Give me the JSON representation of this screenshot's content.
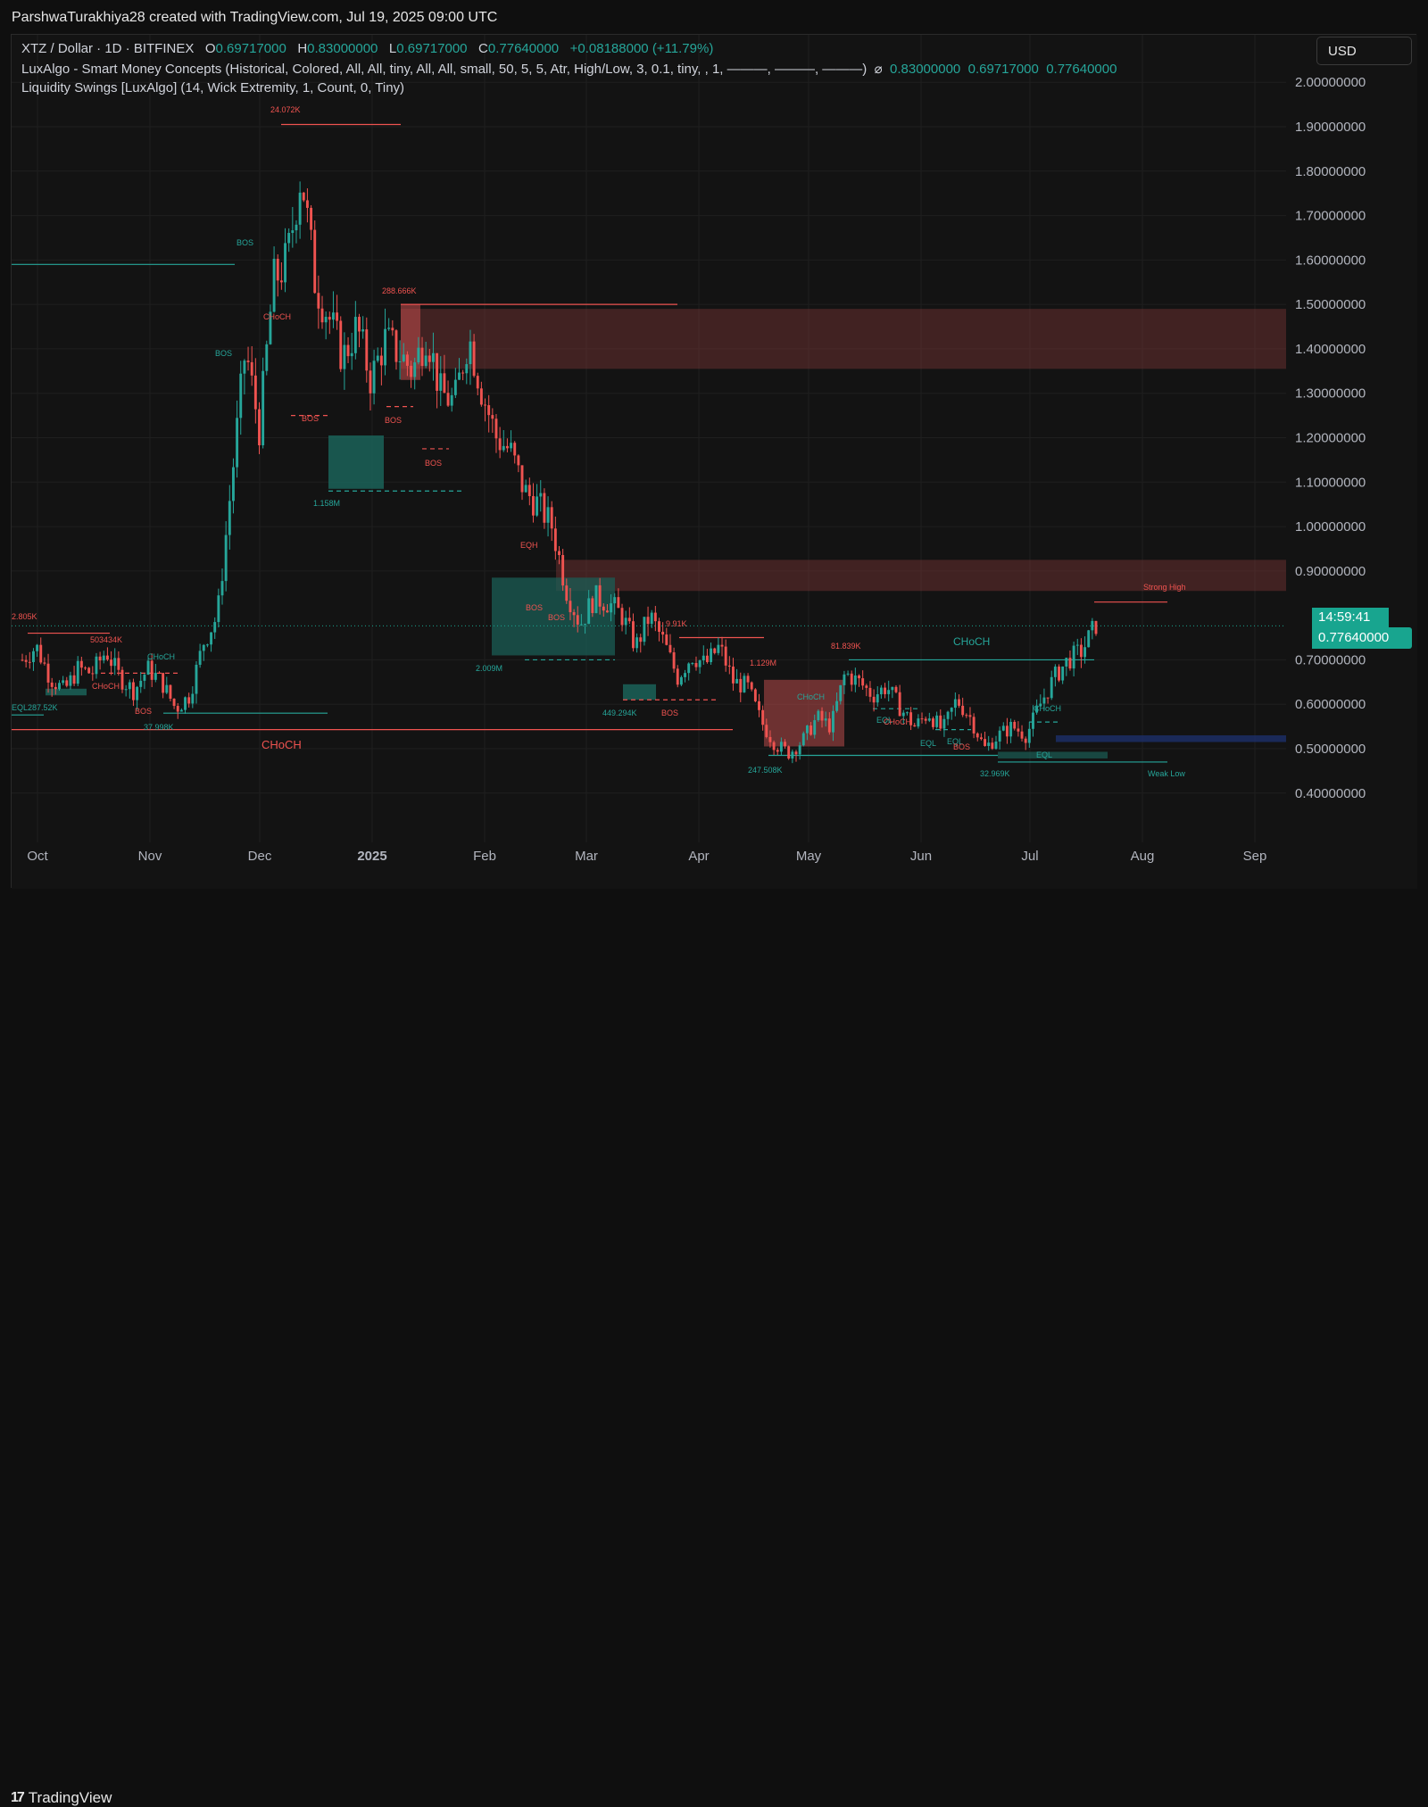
{
  "header": {
    "credit": "ParshwaTurakhiya28 created with TradingView.com, Jul 19, 2025 09:00 UTC"
  },
  "legend": {
    "symbol": "XTZ / Dollar · 1D · BITFINEX",
    "o_label": "O",
    "o_value": "0.69717000",
    "h_label": "H",
    "h_value": "0.83000000",
    "l_label": "L",
    "l_value": "0.69717000",
    "c_label": "C",
    "c_value": "0.77640000",
    "change": "+0.08188000 (+11.79%)",
    "indicator1": "LuxAlgo - Smart Money Concepts (Historical, Colored, All, All, tiny, All, All, small, 50, 5, 5, Atr, High/Low, 3, 0.1, tiny, , 1, ———, ———, ———)",
    "indicator1_eye": "⌀",
    "indicator1_values": [
      "0.83000000",
      "0.69717000",
      "0.77640000"
    ],
    "indicator2": "Liquidity Swings [LuxAlgo] (14, Wick Extremity, 1, Count, 0, Tiny)"
  },
  "currency_button": "USD",
  "countdown": "14:59:41",
  "last_price": "0.77640000",
  "footer": {
    "brand": "TradingView",
    "brand_icon": "tradingview-logo-icon"
  },
  "colors": {
    "up": "#26a69a",
    "down": "#ef5350",
    "background": "#131313",
    "grid": "#1f1f1f",
    "supply_zone": "#7a3535",
    "demand_zone": "#1b5e55"
  },
  "chart_data": {
    "type": "candlestick",
    "x_ticks": [
      "Oct",
      "Nov",
      "Dec",
      "2025",
      "Feb",
      "Mar",
      "Apr",
      "May",
      "Jun",
      "Jul",
      "Aug",
      "Sep"
    ],
    "y_ticks": [
      "0.40000000",
      "0.50000000",
      "0.60000000",
      "0.70000000",
      "0.90000000",
      "1.00000000",
      "1.10000000",
      "1.20000000",
      "1.30000000",
      "1.40000000",
      "1.50000000",
      "1.60000000",
      "1.70000000",
      "1.80000000",
      "1.90000000",
      "2.00000000"
    ],
    "y_axis_partial_label": "00",
    "ylim": [
      0.31,
      2.1
    ],
    "series_anchors": [
      [
        0,
        0.7
      ],
      [
        1,
        0.73
      ],
      [
        2,
        0.66
      ],
      [
        3,
        0.63
      ],
      [
        4,
        0.68
      ],
      [
        5,
        0.67
      ],
      [
        6,
        0.72
      ],
      [
        7,
        0.66
      ],
      [
        8,
        0.63
      ],
      [
        9,
        0.68
      ],
      [
        10,
        0.65
      ],
      [
        11,
        0.59
      ],
      [
        12,
        0.62
      ],
      [
        13,
        0.74
      ],
      [
        14,
        0.8
      ],
      [
        15,
        1.1
      ],
      [
        16,
        1.4
      ],
      [
        17,
        1.22
      ],
      [
        18,
        1.55
      ],
      [
        19,
        1.6
      ],
      [
        20,
        1.8
      ],
      [
        21,
        1.55
      ],
      [
        22,
        1.47
      ],
      [
        23,
        1.38
      ],
      [
        24,
        1.45
      ],
      [
        25,
        1.33
      ],
      [
        26,
        1.42
      ],
      [
        27,
        1.39
      ],
      [
        28,
        1.35
      ],
      [
        29,
        1.44
      ],
      [
        30,
        1.3
      ],
      [
        31,
        1.28
      ],
      [
        32,
        1.43
      ],
      [
        33,
        1.3
      ],
      [
        34,
        1.2
      ],
      [
        35,
        1.17
      ],
      [
        36,
        1.08
      ],
      [
        37,
        1.05
      ],
      [
        38,
        1.0
      ],
      [
        39,
        0.86
      ],
      [
        40,
        0.78
      ],
      [
        41,
        0.84
      ],
      [
        42,
        0.83
      ],
      [
        43,
        0.8
      ],
      [
        44,
        0.73
      ],
      [
        45,
        0.8
      ],
      [
        46,
        0.74
      ],
      [
        47,
        0.66
      ],
      [
        48,
        0.71
      ],
      [
        49,
        0.69
      ],
      [
        50,
        0.73
      ],
      [
        51,
        0.65
      ],
      [
        52,
        0.64
      ],
      [
        53,
        0.56
      ],
      [
        54,
        0.51
      ],
      [
        55,
        0.49
      ],
      [
        56,
        0.52
      ],
      [
        57,
        0.57
      ],
      [
        58,
        0.55
      ],
      [
        59,
        0.67
      ],
      [
        60,
        0.65
      ],
      [
        61,
        0.62
      ],
      [
        62,
        0.64
      ],
      [
        63,
        0.59
      ],
      [
        64,
        0.55
      ],
      [
        65,
        0.58
      ],
      [
        66,
        0.54
      ],
      [
        67,
        0.61
      ],
      [
        68,
        0.57
      ],
      [
        69,
        0.5
      ],
      [
        70,
        0.53
      ],
      [
        71,
        0.55
      ],
      [
        72,
        0.53
      ],
      [
        73,
        0.6
      ],
      [
        74,
        0.66
      ],
      [
        75,
        0.7
      ],
      [
        76,
        0.72
      ],
      [
        77,
        0.78
      ]
    ],
    "annotations": {
      "labels": [
        "24.072K",
        "288.666K",
        "1.158M",
        "2.009M",
        "2.805K",
        "503434K",
        "EQL287.52K",
        "37.998K",
        "EQH",
        "9.91K",
        "1.129M",
        "81.839K",
        "449.294K",
        "247.508K",
        "32.969K",
        "Strong High",
        "Weak Low",
        "CHoCH",
        "BOS",
        "EQL",
        "EQH"
      ],
      "choch_main": "CHoCH",
      "choch_lower": "CHoCH"
    },
    "zones": [
      {
        "kind": "supply",
        "from": 1.355,
        "to": 1.49
      },
      {
        "kind": "supply",
        "from": 0.855,
        "to": 0.925
      },
      {
        "kind": "demand",
        "from": 0.515,
        "to": 0.53
      }
    ],
    "last_price": 0.7764
  }
}
